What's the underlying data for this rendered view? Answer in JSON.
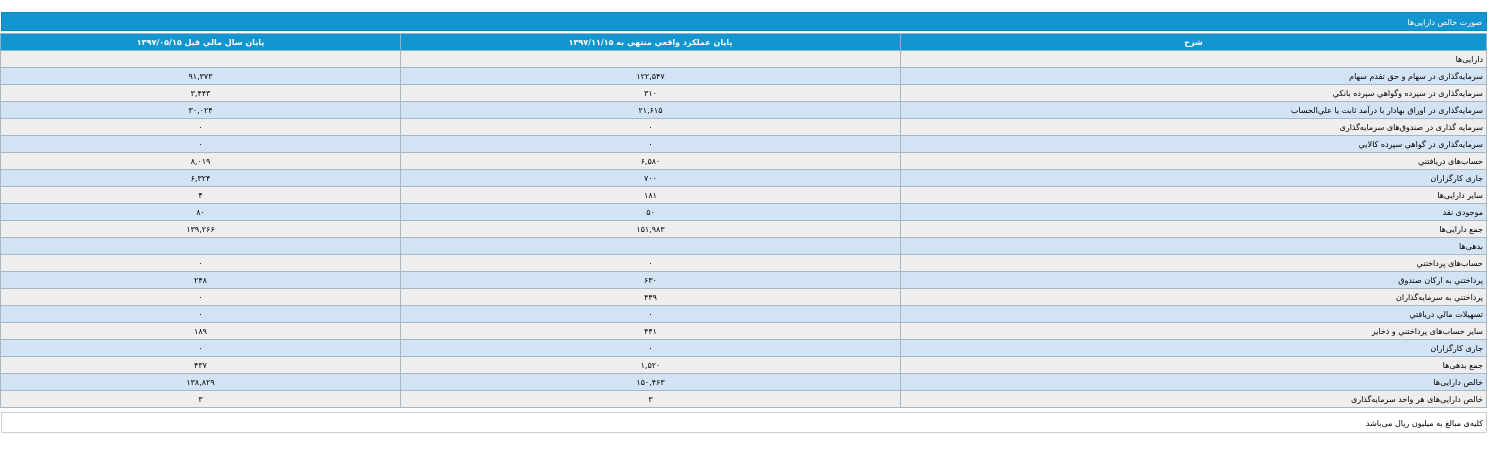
{
  "title": "صورت خالص دارایی‌ها",
  "columns": {
    "description": "شرح",
    "current": "پایان عملکرد واقعي منتهي به ۱۳۹۷/۱۱/۱۵",
    "previous": "پایان سال مالي قبل ۱۳۹۷/۰۵/۱۵"
  },
  "rows": [
    {
      "label": "دارایی‌ها",
      "current": "",
      "previous": ""
    },
    {
      "label": "سرمایه‌گذاری در سهام و حق تقدم سهام",
      "current": "۱۲۲,۵۴۷",
      "previous": "۹۱,۳۷۳"
    },
    {
      "label": "سرمایه‌گذاری در سپرده وگواهي سپرده بانکي",
      "current": "۳۱۰",
      "previous": "۳,۴۴۳"
    },
    {
      "label": "سرمایه‌گذاری در اوراق بهادار با درآمد ثابت یا علي‌الحساب",
      "current": "۲۱,۶۱۵",
      "previous": "۳۰,۰۲۴"
    },
    {
      "label": "سرمایه گذاری در صندوق‌های سرمایه‌گذاری",
      "current": "۰",
      "previous": "۰"
    },
    {
      "label": "سرمایه‌گذاری در گواهي سپرده کالایي",
      "current": "۰",
      "previous": "۰"
    },
    {
      "label": "حساب‌های دریافتني",
      "current": "۶,۵۸۰",
      "previous": "۸,۰۱۹"
    },
    {
      "label": "جاری کارگزاران",
      "current": "۷۰۰",
      "previous": "۶,۳۲۴"
    },
    {
      "label": "سایر دارایی‌ها",
      "current": "۱۸۱",
      "previous": "۴"
    },
    {
      "label": "موجودی نقد",
      "current": "۵۰",
      "previous": "۸۰"
    },
    {
      "label": "جمع دارایی‌ها",
      "current": "۱۵۱,۹۸۳",
      "previous": "۱۳۹,۲۶۶"
    },
    {
      "label": "بدهی‌ها",
      "current": "",
      "previous": ""
    },
    {
      "label": "حساب‌های پرداختني",
      "current": "۰",
      "previous": "۰"
    },
    {
      "label": "پرداختني به ارکان صندوق",
      "current": "۶۳۰",
      "previous": "۲۴۸"
    },
    {
      "label": "پرداختني به سرمایه‌گذاران",
      "current": "۴۴۹",
      "previous": "۰"
    },
    {
      "label": "تسهیلات مالي دریافتي",
      "current": "۰",
      "previous": "۰"
    },
    {
      "label": "سایر حساب‌های پرداختني و ذخایر",
      "current": "۴۴۱",
      "previous": "۱۸۹"
    },
    {
      "label": "جاری کارگزاران",
      "current": "۰",
      "previous": "۰"
    },
    {
      "label": "جمع بدهی‌ها",
      "current": "۱,۵۲۰",
      "previous": "۴۳۷"
    },
    {
      "label": "خالص دارایی‌ها",
      "current": "۱۵۰,۴۶۳",
      "previous": "۱۳۸,۸۲۹"
    },
    {
      "label": "خالص دارایی‌های هر واحد سرمایه‌گذاری",
      "current": "۳",
      "previous": "۳"
    }
  ],
  "footnote": "کلیه‌ی مبالغ به میلیون ریال می‌باشد"
}
